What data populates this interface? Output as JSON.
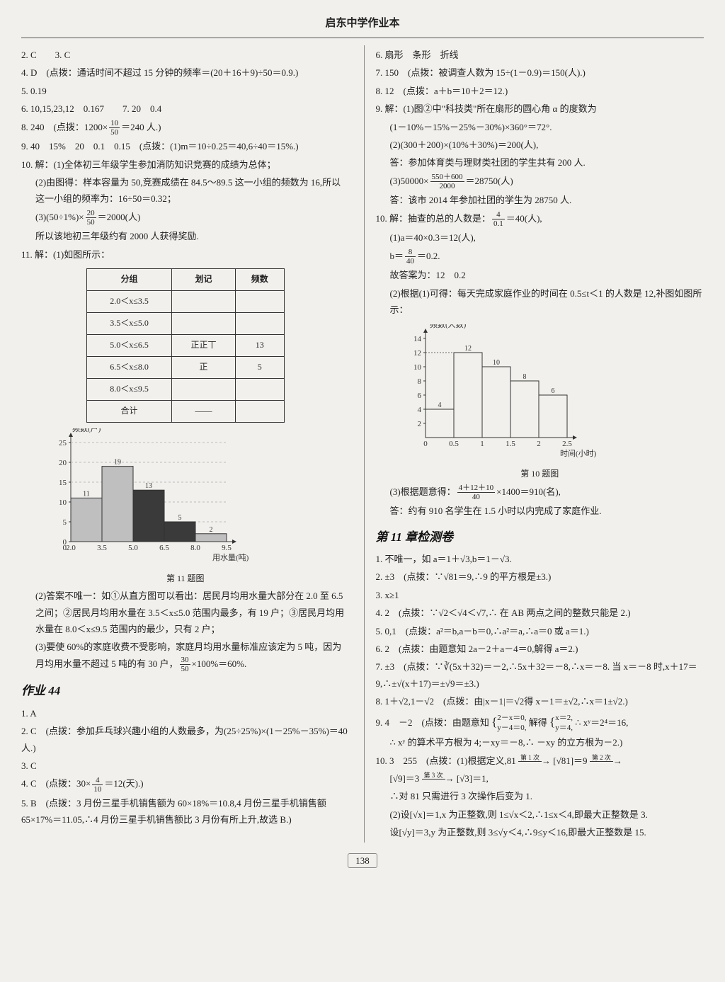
{
  "header": "启东中学作业本",
  "page_number": "138",
  "left": {
    "l1": "2. C　　3. C",
    "l2": "4. D　(点拨：通话时间不超过 15 分钟的频率＝(20＋16＋9)÷50＝0.9.)",
    "l3": "5. 0.19",
    "l4": "6. 10,15,23,12　0.167　　7. 20　0.4",
    "l5a": "8. 240　(点拨：1200×",
    "l5b": "＝240 人.)",
    "l6": "9. 40　15%　20　0.1　0.15　(点拨：(1)m＝10÷0.25＝40,6÷40＝15%.)",
    "l7": "10. 解：(1)全体初三年级学生参加消防知识竞赛的成绩为总体；",
    "l7b": "(2)由图得：样本容量为 50,竞赛成绩在 84.5～89.5 这一小组的频数为 16,所以这一小组的频率为：16÷50＝0.32；",
    "l7c_a": "(3)(50÷1%)×",
    "l7c_b": "＝2000(人)",
    "l7d": "所以该地初三年级约有 2000 人获得奖励.",
    "l8": "11. 解：(1)如图所示：",
    "table11": {
      "headers": [
        "分组",
        "划记",
        "频数"
      ],
      "rows": [
        [
          "2.0＜x≤3.5",
          "",
          ""
        ],
        [
          "3.5＜x≤5.0",
          "",
          ""
        ],
        [
          "5.0＜x≤6.5",
          "正正丅",
          "13"
        ],
        [
          "6.5＜x≤8.0",
          "正",
          "5"
        ],
        [
          "8.0＜x≤9.5",
          "",
          ""
        ],
        [
          "合计",
          "——",
          ""
        ]
      ]
    },
    "chart11": {
      "type": "bar",
      "ylabel": "频数(户)",
      "xlabel": "用水量(吨)",
      "caption": "第 11 题图",
      "x_ticks": [
        "2.0",
        "3.5",
        "5.0",
        "6.5",
        "8.0",
        "9.5"
      ],
      "y_ticks": [
        0,
        5,
        10,
        15,
        20,
        25
      ],
      "bars": [
        {
          "label": "11",
          "value": 11,
          "color": "#bfbfbf"
        },
        {
          "label": "19",
          "value": 19,
          "color": "#bfbfbf"
        },
        {
          "label": "13",
          "value": 13,
          "color": "#3a3a3a"
        },
        {
          "label": "5",
          "value": 5,
          "color": "#3a3a3a"
        },
        {
          "label": "2",
          "value": 2,
          "color": "#bfbfbf"
        }
      ],
      "bg": "#f2f0ed",
      "axis_color": "#333"
    },
    "l9": "(2)答案不唯一：如①从直方图可以看出：居民月均用水量大部分在 2.0 至 6.5 之间；②居民月均用水量在 3.5＜x≤5.0 范围内最多，有 19 户；③居民月均用水量在 8.0＜x≤9.5 范围内的最少，只有 2 户；",
    "l10a": "(3)要使 60%的家庭收费不受影响，家庭月均用水量标准应该定为 5 吨，因为月均用水量不超过 5 吨的有 30 户，",
    "l10b": "×100%＝60%.",
    "hw44_title": "作业 44",
    "h1": "1. A",
    "h2": "2. C　(点拨：参加乒乓球兴趣小组的人数最多，为(25÷25%)×(1－25%－35%)＝40 人.)",
    "h3": "3. C",
    "h4a": "4. C　(点拨：30×",
    "h4b": "＝12(天).)",
    "h5": "5. B　(点拨：3 月份三星手机销售额为 60×18%＝10.8,4 月份三星手机销售额 65×17%＝11.05,∴4 月份三星手机销售额比 3 月份有所上升,故选 B.)"
  },
  "right": {
    "r1": "6. 扇形　条形　折线",
    "r2": "7. 150　(点拨：被调查人数为 15÷(1－0.9)＝150(人).)",
    "r3": "8. 12　(点拨：a＋b＝10＋2＝12.)",
    "r4a": "9. 解：(1)图②中\"科技类\"所在扇形的圆心角 α 的度数为",
    "r4b": "(1－10%－15%－25%－30%)×360°＝72°.",
    "r4c": "(2)(300＋200)×(10%＋30%)＝200(人),",
    "r4d": "答：参加体育类与理财类社团的学生共有 200 人.",
    "r4e_a": "(3)50000×",
    "r4e_b": "＝28750(人)",
    "r4f": "答：该市 2014 年参加社团的学生为 28750 人.",
    "r5a_a": "10. 解：抽查的总的人数是：",
    "r5a_b": "＝40(人),",
    "r5b": "(1)a＝40×0.3＝12(人),",
    "r5c_a": "b＝",
    "r5c_b": "＝0.2.",
    "r5d": "故答案为：12　0.2",
    "r5e": "(2)根据(1)可得：每天完成家庭作业的时间在 0.5≤t＜1 的人数是 12,补图如图所示：",
    "chart10": {
      "type": "bar",
      "ylabel": "频数(人数)",
      "xlabel": "时间(小时)",
      "caption": "第 10 题图",
      "x_ticks": [
        "0",
        "0.5",
        "1",
        "1.5",
        "2",
        "2.5"
      ],
      "y_ticks": [
        2,
        4,
        6,
        8,
        10,
        12,
        14
      ],
      "bars": [
        {
          "label": "4",
          "value": 4
        },
        {
          "label": "12",
          "value": 12
        },
        {
          "label": "10",
          "value": 10
        },
        {
          "label": "8",
          "value": 8
        },
        {
          "label": "6",
          "value": 6
        }
      ],
      "bar_color": "#f2f0ed",
      "stroke": "#333"
    },
    "r5f_a": "(3)根据题意得：",
    "r5f_b": "×1400＝910(名),",
    "r5g": "答：约有 910 名学生在 1.5 小时以内完成了家庭作业.",
    "ch11_title": "第 11 章检测卷",
    "c1": "1. 不唯一，如 a＝1＋√3,b＝1－√3.",
    "c2": "2. ±3　(点拨：∵√81＝9,∴9 的平方根是±3.)",
    "c3": "3. x≥1",
    "c4": "4. 2　(点拨：∵√2＜√4＜√7,∴ 在 AB 两点之间的整数只能是 2.)",
    "c5": "5. 0,1　(点拨：a²＝b,a－b＝0,∴a²＝a,∴a＝0 或 a＝1.)",
    "c6": "6. 2　(点拨：由题意知 2a－2＋a－4＝0,解得 a＝2.)",
    "c7": "7. ±3　(点拨：∵∛(5x＋32)＝－2,∴5x＋32＝－8,∴x＝－8. 当 x＝－8 时,x＋17＝9,∴±√(x＋17)＝±√9＝±3.)",
    "c8": "8. 1＋√2,1－√2　(点拨：由|x－1|＝√2得 x－1＝±√2,∴x＝1±√2.)",
    "c9a": "9. 4　－2　(点拨：由题意知",
    "c9b": "解得",
    "c9c": "∴ xʸ＝2⁴＝16,",
    "c9d": "∴ xʸ 的算术平方根为 4;－xy＝－8,∴ －xy 的立方根为－2.)",
    "c10a": "10. 3　255　(点拨：(1)根据定义,81",
    "c10arr1": "第 1 次",
    "c10b": "[√81]＝9",
    "c10arr2": "第 2 次",
    "c10c": "[√9]＝3",
    "c10arr3": "第 3 次",
    "c10d": "[√3]＝1,",
    "c10e": "∴对 81 只需进行 3 次操作后变为 1.",
    "c10f": "(2)设[√x]＝1,x 为正整数,则 1≤√x＜2,∴1≤x＜4,即最大正整数是 3.",
    "c10g": "设[√y]＝3,y 为正整数,则 3≤√y＜4,∴9≤y＜16,即最大正整数是 15."
  },
  "fracs": {
    "f10_50": {
      "n": "10",
      "d": "50"
    },
    "f20_50": {
      "n": "20",
      "d": "50"
    },
    "f30_50": {
      "n": "30",
      "d": "50"
    },
    "f4_10": {
      "n": "4",
      "d": "10"
    },
    "f550_600_2000": {
      "n": "550＋600",
      "d": "2000"
    },
    "f4_01": {
      "n": "4",
      "d": "0.1"
    },
    "f8_40": {
      "n": "8",
      "d": "40"
    },
    "f4_12_10_40": {
      "n": "4＋12＋10",
      "d": "40"
    }
  },
  "braces": {
    "sys1a": "2－x＝0,",
    "sys1b": "y－4＝0,",
    "sys2a": "x＝2,",
    "sys2b": "y＝4,"
  }
}
